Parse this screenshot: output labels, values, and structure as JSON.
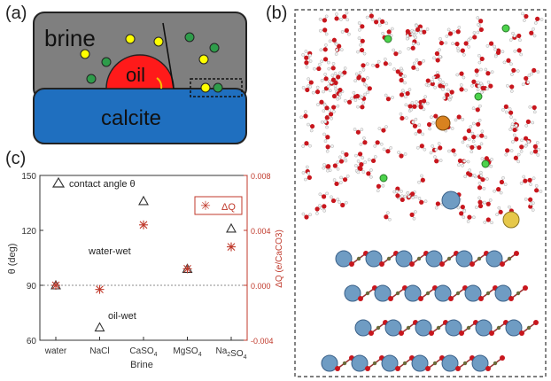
{
  "panel_labels": {
    "a": "(a)",
    "b": "(b)",
    "c": "(c)"
  },
  "schematic": {
    "brine_label": "brine",
    "oil_label": "oil",
    "substrate_label": "calcite"
  },
  "chart_data": {
    "type": "scatter",
    "xlabel": "Brine",
    "categories": [
      "water",
      "NaCl",
      "CaSO4",
      "MgSO4",
      "Na2SO4"
    ],
    "ylabel": "θ (deg)",
    "ylim": [
      60,
      150
    ],
    "yticks": [
      60,
      90,
      120,
      150
    ],
    "ylabel_right": "ΔQ (e/CaCO3)",
    "ylim_right": [
      -0.004,
      0.008
    ],
    "yticks_right": [
      "-0.004",
      "0.000",
      "0.004",
      "0.008"
    ],
    "series": [
      {
        "name": "contact angle θ",
        "axis": "left",
        "marker": "triangle",
        "values": [
          90,
          67,
          136,
          99,
          121
        ]
      },
      {
        "name": "ΔQ",
        "axis": "right",
        "marker": "star",
        "values": [
          0.0,
          -0.0003,
          0.0044,
          0.0012,
          0.0028
        ]
      }
    ],
    "annotations": [
      "water-wet",
      "oil-wet"
    ],
    "reference_line": 90,
    "colors": {
      "left_axis": "#333333",
      "right_axis": "#c0392b"
    }
  }
}
